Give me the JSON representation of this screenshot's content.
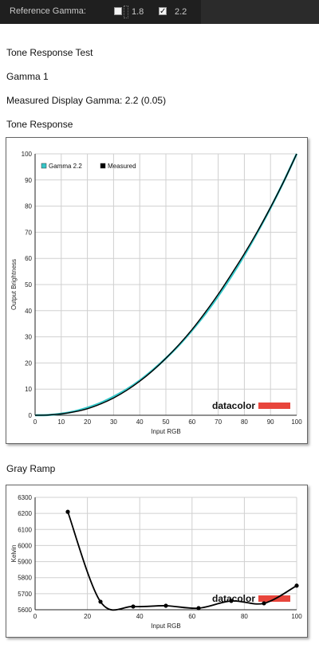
{
  "toolbar": {
    "reference_gamma_label": "Reference Gamma:",
    "options": [
      {
        "value": "1.8",
        "checked": false
      },
      {
        "value": "2.2",
        "checked": true
      }
    ],
    "check_glyph": "✓"
  },
  "report": {
    "title": "Tone Response Test",
    "subtitle": "Gamma 1",
    "measured_gamma": "Measured Display Gamma: 2.2 (0.05)",
    "tone_heading": "Tone Response",
    "gray_heading": "Gray Ramp"
  },
  "colors": {
    "gamma_reference": "#35c6c8",
    "measured": "#000000",
    "logo_bar": "#e8453c",
    "grid": "#d0d0d0"
  },
  "chart_data": [
    {
      "type": "line",
      "title": "",
      "xlabel": "Input RGB",
      "ylabel": "Output Brightness",
      "xlim": [
        0,
        100
      ],
      "ylim": [
        0,
        100
      ],
      "xticks": [
        0,
        10,
        20,
        30,
        40,
        50,
        60,
        70,
        80,
        90,
        100
      ],
      "yticks": [
        0,
        10,
        20,
        30,
        40,
        50,
        60,
        70,
        80,
        90,
        100
      ],
      "grid": true,
      "legend_position": "top-left",
      "logo_text": "datacolor",
      "series": [
        {
          "name": "Gamma 2.2",
          "color": "#35c6c8",
          "x": [
            0,
            5,
            10,
            15,
            20,
            25,
            30,
            35,
            40,
            45,
            50,
            55,
            60,
            65,
            70,
            75,
            80,
            85,
            90,
            95,
            100
          ],
          "y": [
            0,
            0.1,
            0.6,
            1.5,
            2.9,
            4.7,
            7.1,
            9.9,
            13.3,
            17.3,
            21.8,
            26.8,
            32.5,
            38.7,
            45.6,
            53.1,
            61.2,
            70.0,
            79.3,
            89.3,
            100
          ]
        },
        {
          "name": "Measured",
          "color": "#000000",
          "x": [
            0,
            5,
            10,
            15,
            20,
            25,
            30,
            35,
            40,
            45,
            50,
            55,
            60,
            65,
            70,
            75,
            80,
            85,
            90,
            95,
            100
          ],
          "y": [
            0,
            0.1,
            0.5,
            1.3,
            2.5,
            4.3,
            6.6,
            9.5,
            13.0,
            17.1,
            21.8,
            27.0,
            32.8,
            39.3,
            46.3,
            53.9,
            61.8,
            70.3,
            79.5,
            89.3,
            100
          ]
        }
      ]
    },
    {
      "type": "line",
      "title": "",
      "xlabel": "Input RGB",
      "ylabel": "Kelvin",
      "xlim": [
        0,
        100
      ],
      "ylim": [
        5600,
        6300
      ],
      "xticks": [
        0,
        20,
        40,
        60,
        80,
        100
      ],
      "yticks": [
        5600,
        5700,
        5800,
        5900,
        6000,
        6100,
        6200,
        6300
      ],
      "grid": true,
      "logo_text": "datacolor",
      "series": [
        {
          "name": "",
          "color": "#000000",
          "x": [
            12.5,
            25,
            37.5,
            50,
            62.5,
            75,
            87.5,
            100
          ],
          "y": [
            6210,
            5650,
            5620,
            5625,
            5610,
            5655,
            5640,
            5750
          ]
        }
      ]
    }
  ]
}
